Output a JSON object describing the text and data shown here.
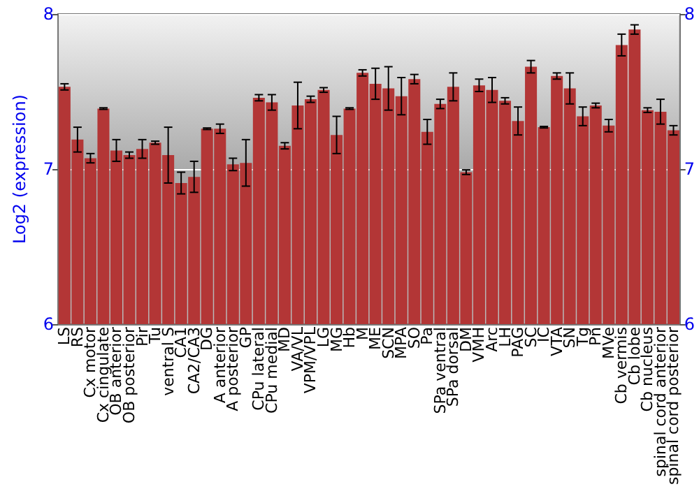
{
  "chart_data": {
    "type": "bar",
    "ylabel": "Log2 (expression)",
    "categories": [
      "LS",
      "RS",
      "Cx motor",
      "Cx cingulate",
      "OB anterior",
      "OB posterior",
      "Pir",
      "Tu",
      "ventral S",
      "CA1",
      "CA2/CA3",
      "DG",
      "A anterior",
      "A posterior",
      "GP",
      "CPu lateral",
      "CPu medial",
      "MD",
      "VA/VL",
      "VPM/VPL",
      "LG",
      "MG",
      "Hb",
      "M",
      "ME",
      "SCN",
      "MPA",
      "SO",
      "Pa",
      "SPa ventral",
      "SPa dorsal",
      "DM",
      "VMH",
      "Arc",
      "LH",
      "PAG",
      "SC",
      "IC",
      "VTA",
      "SN",
      "Tg",
      "Pn",
      "MVe",
      "Cb vermis",
      "Cb lobe",
      "Cb nucleus",
      "spinal cord anterior",
      "spinal cord posterior"
    ],
    "values": [
      7.53,
      7.19,
      7.07,
      7.39,
      7.12,
      7.09,
      7.13,
      7.17,
      7.09,
      6.91,
      6.95,
      7.26,
      7.26,
      7.03,
      7.04,
      7.46,
      7.43,
      7.15,
      7.41,
      7.45,
      7.51,
      7.22,
      7.39,
      7.62,
      7.55,
      7.52,
      7.47,
      7.58,
      7.24,
      7.42,
      7.53,
      6.98,
      7.54,
      7.51,
      7.44,
      7.31,
      7.66,
      7.27,
      7.6,
      7.52,
      7.34,
      7.41,
      7.28,
      7.8,
      7.9,
      7.38,
      7.37,
      7.25
    ],
    "errors": [
      0.02,
      0.08,
      0.03,
      0.005,
      0.07,
      0.02,
      0.06,
      0.01,
      0.18,
      0.07,
      0.1,
      0.005,
      0.03,
      0.04,
      0.15,
      0.02,
      0.05,
      0.02,
      0.15,
      0.02,
      0.015,
      0.12,
      0.005,
      0.02,
      0.1,
      0.14,
      0.12,
      0.03,
      0.08,
      0.03,
      0.09,
      0.015,
      0.04,
      0.08,
      0.02,
      0.09,
      0.04,
      0.005,
      0.02,
      0.1,
      0.06,
      0.015,
      0.04,
      0.07,
      0.03,
      0.015,
      0.08,
      0.03
    ],
    "color": "#b33636",
    "ylim": [
      6,
      8
    ],
    "yticks": [
      6,
      7,
      8
    ],
    "y2lim": [
      6,
      8
    ],
    "y2ticks": [
      6,
      7,
      8
    ],
    "grid": "y"
  }
}
